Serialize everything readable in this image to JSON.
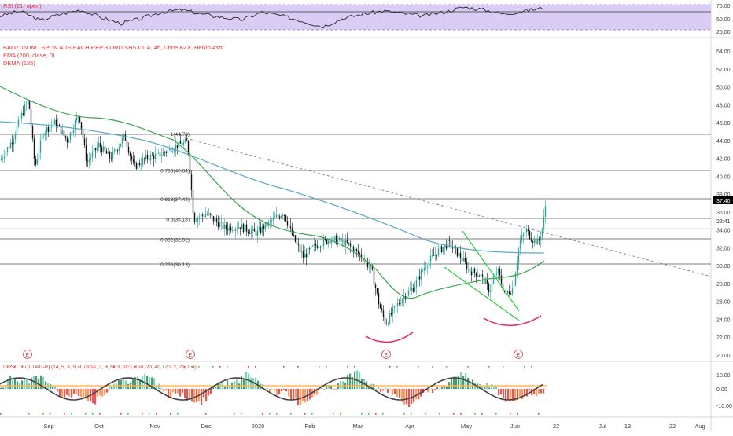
{
  "colors": {
    "up": "#26a69a",
    "down": "#111111",
    "ema": "#5aa9c8",
    "dema": "#3aa34a",
    "rsi_band": "#d9cdf5",
    "rsi_line": "#333333",
    "level_line": "#555555",
    "arc": "#e91e63",
    "pattern": "#2ecc40",
    "title_red": "#e53935",
    "badge": "#d04040",
    "price_tag": "#000000"
  },
  "rsi_pane": {
    "label": "RSI (21, open)",
    "ticks": [
      "75.00",
      "50.00",
      "25.00"
    ]
  },
  "main_pane": {
    "legend": [
      "BAOZUN INC SPON ADS EACH REP 3 ORD SHS CL A, 4h, Cboe BZX, Heikin Ashi",
      "EMA (200, close, 0)",
      "DEMA (125)"
    ],
    "price_ticks": [
      "54.00",
      "52.00",
      "50.00",
      "48.00",
      "46.00",
      "44.00",
      "42.00",
      "40.00",
      "38.00",
      "36.00",
      "34.00",
      "32.00",
      "30.00",
      "28.00",
      "26.00",
      "24.00",
      "22.00",
      "20.00"
    ],
    "price_tag": "37.40",
    "time_tag": "22:41",
    "fib_labels": [
      {
        "text": "1(44.73)",
        "price": 44.73
      },
      {
        "text": "0.786(40.64)",
        "price": 40.64
      },
      {
        "text": "0.618(37.43)",
        "price": 37.43
      },
      {
        "text": "0.5(35.18)",
        "price": 35.18
      },
      {
        "text": "0.382(32.92)",
        "price": 32.92
      },
      {
        "text": "0.236(30.13)",
        "price": 30.13
      }
    ],
    "earnings_badge": "E"
  },
  "osc_pane": {
    "label": "DOSC Ou [ID:AG-R] (14, 5, 3, 9, 9, close, 3, 3, hlc3, hlc3, 150, 20, 40, -20, 2, 21, 0.4)",
    "ticks": [
      "10.00",
      "0.00",
      "-10.00"
    ]
  },
  "time_axis": [
    "Sep",
    "Oct",
    "Nov",
    "Dec",
    "2020",
    "Feb",
    "Mar",
    "Apr",
    "May",
    "Jun",
    "22",
    "Jul",
    "13",
    "22",
    "Aug"
  ],
  "chart_data": {
    "type": "candlestick",
    "title": "BAOZUN INC SPON ADS EACH REP 3 ORD SHS CL A, 4h, Cboe BZX, Heikin Ashi",
    "ylabel": "",
    "ylim": [
      19,
      56
    ],
    "price_path": [
      {
        "t": "Sep",
        "p": 43.5
      },
      {
        "t": "mid-Sep",
        "p": 46.5
      },
      {
        "t": "Oct",
        "p": 46.0
      },
      {
        "t": "mid-Oct",
        "p": 43.0
      },
      {
        "t": "Nov",
        "p": 42.0
      },
      {
        "t": "late-Nov",
        "p": 43.5
      },
      {
        "t": "Dec",
        "p": 35.5
      },
      {
        "t": "mid-Dec",
        "p": 34.5
      },
      {
        "t": "2020",
        "p": 36.0
      },
      {
        "t": "Feb",
        "p": 32.0
      },
      {
        "t": "mid-Feb",
        "p": 33.5
      },
      {
        "t": "Mar",
        "p": 31.5
      },
      {
        "t": "mid-Mar",
        "p": 24.0
      },
      {
        "t": "Apr",
        "p": 27.5
      },
      {
        "t": "mid-Apr",
        "p": 31.5
      },
      {
        "t": "May",
        "p": 30.0
      },
      {
        "t": "mid-May",
        "p": 27.0
      },
      {
        "t": "Jun",
        "p": 34.0
      },
      {
        "t": "mid-Jun",
        "p": 37.4
      }
    ],
    "fibonacci_levels": [
      {
        "ratio": 1,
        "price": 44.73
      },
      {
        "ratio": 0.786,
        "price": 40.64
      },
      {
        "ratio": 0.618,
        "price": 37.43
      },
      {
        "ratio": 0.5,
        "price": 35.18
      },
      {
        "ratio": 0.382,
        "price": 32.92
      },
      {
        "ratio": 0.236,
        "price": 30.13
      }
    ],
    "last_price": 37.4,
    "series": [
      {
        "name": "EMA (200, close, 0)"
      },
      {
        "name": "DEMA (125)"
      }
    ],
    "rsi": {
      "label": "RSI (21, open)",
      "ylim": [
        0,
        100
      ],
      "band": [
        30,
        70
      ],
      "values": [
        52,
        60,
        45,
        55,
        62,
        50,
        40,
        48,
        58,
        62,
        55,
        50,
        46,
        58,
        52,
        44,
        35,
        48,
        55,
        60,
        56,
        52,
        58,
        66,
        62,
        55,
        60,
        65
      ]
    },
    "oscillator": {
      "ylim": [
        -15,
        15
      ]
    }
  }
}
